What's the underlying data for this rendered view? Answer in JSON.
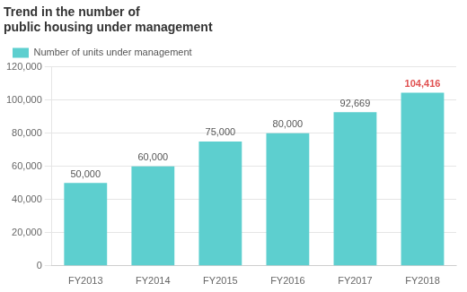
{
  "chart_data": {
    "type": "bar",
    "title": [
      "Trend in the number of",
      "public housing under management"
    ],
    "categories": [
      "FY2013",
      "FY2014",
      "FY2015",
      "FY2016",
      "FY2017",
      "FY2018"
    ],
    "series": [
      {
        "name": "Number of units under management",
        "color": "#5DCFCF",
        "values": [
          50000,
          60000,
          75000,
          80000,
          92669,
          104416
        ],
        "value_labels": [
          "50,000",
          "60,000",
          "75,000",
          "80,000",
          "92,669",
          "104,416"
        ]
      }
    ],
    "ylim": [
      0,
      120000
    ],
    "yticks": [
      {
        "value": 0,
        "label": "0"
      },
      {
        "value": 20000,
        "label": "20,000"
      },
      {
        "value": 40000,
        "label": "40,000"
      },
      {
        "value": 60000,
        "label": "60,000"
      },
      {
        "value": 80000,
        "label": "80,000"
      },
      {
        "value": 100000,
        "label": "100,000"
      },
      {
        "value": 120000,
        "label": "120,000"
      }
    ],
    "grid": true,
    "legend": "upper left",
    "data_labels": true
  }
}
